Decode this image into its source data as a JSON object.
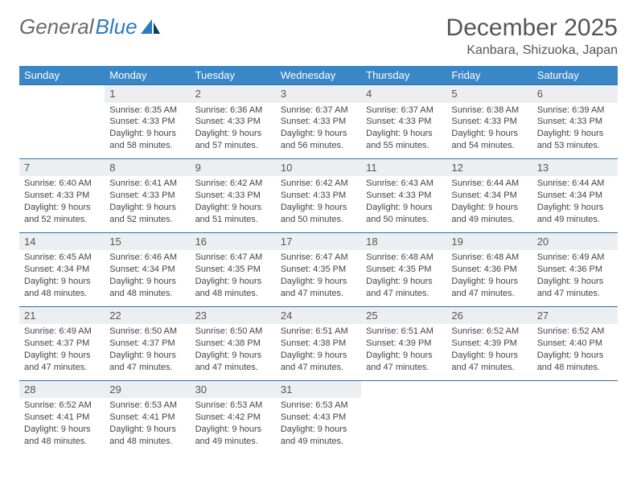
{
  "brand": {
    "part1": "General",
    "part2": "Blue"
  },
  "title": "December 2025",
  "location": "Kanbara, Shizuoka, Japan",
  "dow": [
    "Sunday",
    "Monday",
    "Tuesday",
    "Wednesday",
    "Thursday",
    "Friday",
    "Saturday"
  ],
  "colors": {
    "header_bg": "#3a87c7",
    "header_text": "#ffffff",
    "daynum_bg": "#eceff1",
    "row_divider": "#2f6fa3",
    "text": "#444444",
    "brand_blue": "#2a7bbf"
  },
  "weeks": [
    [
      {
        "n": "",
        "lines": []
      },
      {
        "n": "1",
        "lines": [
          "Sunrise: 6:35 AM",
          "Sunset: 4:33 PM",
          "Daylight: 9 hours and 58 minutes."
        ]
      },
      {
        "n": "2",
        "lines": [
          "Sunrise: 6:36 AM",
          "Sunset: 4:33 PM",
          "Daylight: 9 hours and 57 minutes."
        ]
      },
      {
        "n": "3",
        "lines": [
          "Sunrise: 6:37 AM",
          "Sunset: 4:33 PM",
          "Daylight: 9 hours and 56 minutes."
        ]
      },
      {
        "n": "4",
        "lines": [
          "Sunrise: 6:37 AM",
          "Sunset: 4:33 PM",
          "Daylight: 9 hours and 55 minutes."
        ]
      },
      {
        "n": "5",
        "lines": [
          "Sunrise: 6:38 AM",
          "Sunset: 4:33 PM",
          "Daylight: 9 hours and 54 minutes."
        ]
      },
      {
        "n": "6",
        "lines": [
          "Sunrise: 6:39 AM",
          "Sunset: 4:33 PM",
          "Daylight: 9 hours and 53 minutes."
        ]
      }
    ],
    [
      {
        "n": "7",
        "lines": [
          "Sunrise: 6:40 AM",
          "Sunset: 4:33 PM",
          "Daylight: 9 hours and 52 minutes."
        ]
      },
      {
        "n": "8",
        "lines": [
          "Sunrise: 6:41 AM",
          "Sunset: 4:33 PM",
          "Daylight: 9 hours and 52 minutes."
        ]
      },
      {
        "n": "9",
        "lines": [
          "Sunrise: 6:42 AM",
          "Sunset: 4:33 PM",
          "Daylight: 9 hours and 51 minutes."
        ]
      },
      {
        "n": "10",
        "lines": [
          "Sunrise: 6:42 AM",
          "Sunset: 4:33 PM",
          "Daylight: 9 hours and 50 minutes."
        ]
      },
      {
        "n": "11",
        "lines": [
          "Sunrise: 6:43 AM",
          "Sunset: 4:33 PM",
          "Daylight: 9 hours and 50 minutes."
        ]
      },
      {
        "n": "12",
        "lines": [
          "Sunrise: 6:44 AM",
          "Sunset: 4:34 PM",
          "Daylight: 9 hours and 49 minutes."
        ]
      },
      {
        "n": "13",
        "lines": [
          "Sunrise: 6:44 AM",
          "Sunset: 4:34 PM",
          "Daylight: 9 hours and 49 minutes."
        ]
      }
    ],
    [
      {
        "n": "14",
        "lines": [
          "Sunrise: 6:45 AM",
          "Sunset: 4:34 PM",
          "Daylight: 9 hours and 48 minutes."
        ]
      },
      {
        "n": "15",
        "lines": [
          "Sunrise: 6:46 AM",
          "Sunset: 4:34 PM",
          "Daylight: 9 hours and 48 minutes."
        ]
      },
      {
        "n": "16",
        "lines": [
          "Sunrise: 6:47 AM",
          "Sunset: 4:35 PM",
          "Daylight: 9 hours and 48 minutes."
        ]
      },
      {
        "n": "17",
        "lines": [
          "Sunrise: 6:47 AM",
          "Sunset: 4:35 PM",
          "Daylight: 9 hours and 47 minutes."
        ]
      },
      {
        "n": "18",
        "lines": [
          "Sunrise: 6:48 AM",
          "Sunset: 4:35 PM",
          "Daylight: 9 hours and 47 minutes."
        ]
      },
      {
        "n": "19",
        "lines": [
          "Sunrise: 6:48 AM",
          "Sunset: 4:36 PM",
          "Daylight: 9 hours and 47 minutes."
        ]
      },
      {
        "n": "20",
        "lines": [
          "Sunrise: 6:49 AM",
          "Sunset: 4:36 PM",
          "Daylight: 9 hours and 47 minutes."
        ]
      }
    ],
    [
      {
        "n": "21",
        "lines": [
          "Sunrise: 6:49 AM",
          "Sunset: 4:37 PM",
          "Daylight: 9 hours and 47 minutes."
        ]
      },
      {
        "n": "22",
        "lines": [
          "Sunrise: 6:50 AM",
          "Sunset: 4:37 PM",
          "Daylight: 9 hours and 47 minutes."
        ]
      },
      {
        "n": "23",
        "lines": [
          "Sunrise: 6:50 AM",
          "Sunset: 4:38 PM",
          "Daylight: 9 hours and 47 minutes."
        ]
      },
      {
        "n": "24",
        "lines": [
          "Sunrise: 6:51 AM",
          "Sunset: 4:38 PM",
          "Daylight: 9 hours and 47 minutes."
        ]
      },
      {
        "n": "25",
        "lines": [
          "Sunrise: 6:51 AM",
          "Sunset: 4:39 PM",
          "Daylight: 9 hours and 47 minutes."
        ]
      },
      {
        "n": "26",
        "lines": [
          "Sunrise: 6:52 AM",
          "Sunset: 4:39 PM",
          "Daylight: 9 hours and 47 minutes."
        ]
      },
      {
        "n": "27",
        "lines": [
          "Sunrise: 6:52 AM",
          "Sunset: 4:40 PM",
          "Daylight: 9 hours and 48 minutes."
        ]
      }
    ],
    [
      {
        "n": "28",
        "lines": [
          "Sunrise: 6:52 AM",
          "Sunset: 4:41 PM",
          "Daylight: 9 hours and 48 minutes."
        ]
      },
      {
        "n": "29",
        "lines": [
          "Sunrise: 6:53 AM",
          "Sunset: 4:41 PM",
          "Daylight: 9 hours and 48 minutes."
        ]
      },
      {
        "n": "30",
        "lines": [
          "Sunrise: 6:53 AM",
          "Sunset: 4:42 PM",
          "Daylight: 9 hours and 49 minutes."
        ]
      },
      {
        "n": "31",
        "lines": [
          "Sunrise: 6:53 AM",
          "Sunset: 4:43 PM",
          "Daylight: 9 hours and 49 minutes."
        ]
      },
      {
        "n": "",
        "lines": []
      },
      {
        "n": "",
        "lines": []
      },
      {
        "n": "",
        "lines": []
      }
    ]
  ]
}
